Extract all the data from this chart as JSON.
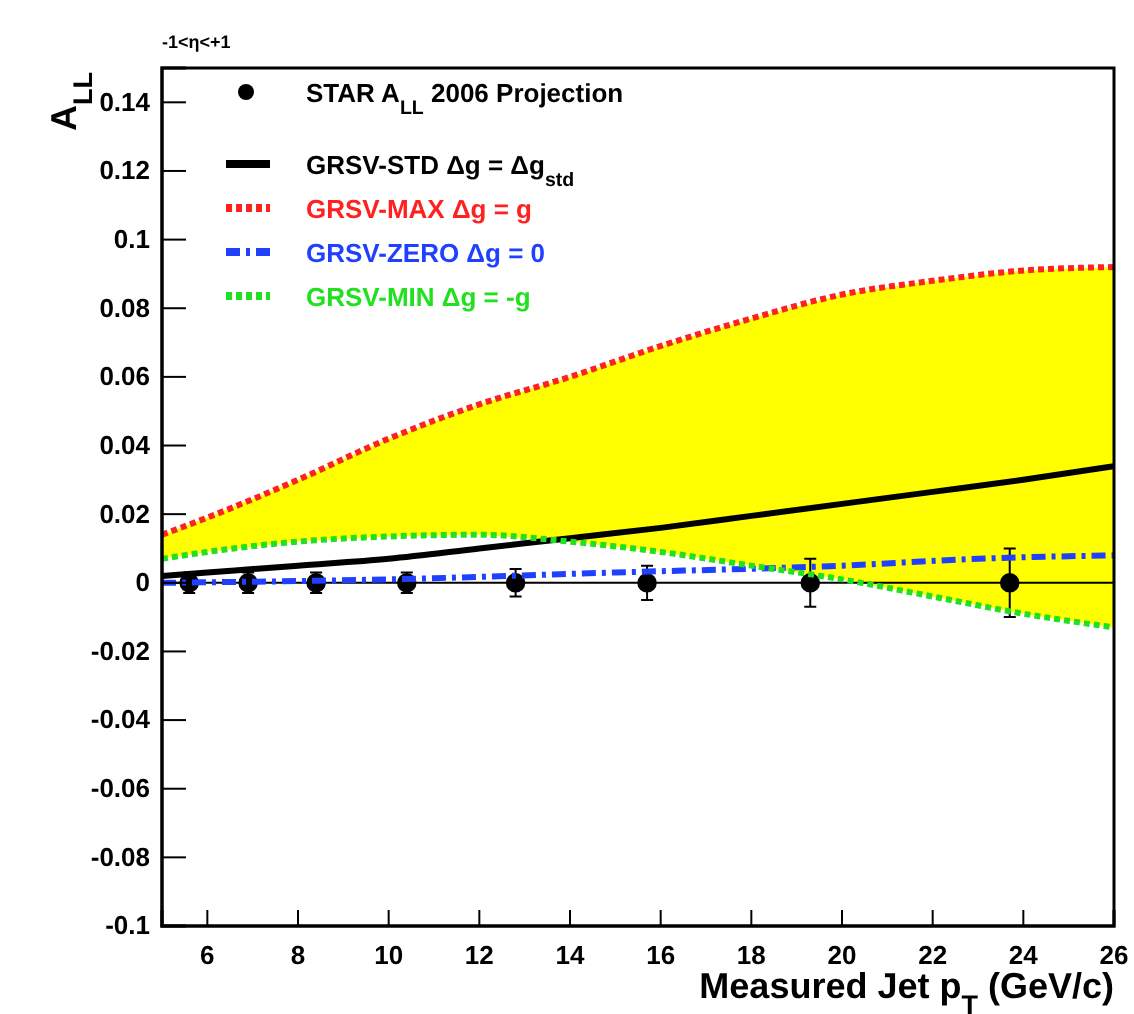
{
  "chart_data": {
    "type": "line",
    "xlabel": "Measured Jet p$_{T}$ (GeV/c)",
    "ylabel": "A$_{LL}$",
    "annotations": [
      "-1<η<+1"
    ],
    "xlim": [
      5,
      26
    ],
    "ylim": [
      -0.1,
      0.15
    ],
    "xticks": [
      6,
      8,
      10,
      12,
      14,
      16,
      18,
      20,
      22,
      24,
      26
    ],
    "yticks": [
      -0.1,
      -0.08,
      -0.06,
      -0.04,
      -0.02,
      0,
      0.02,
      0.04,
      0.06,
      0.08,
      0.1,
      0.12,
      0.14
    ],
    "legend": "top left",
    "ref_lines": [
      {
        "axis": "y",
        "value": 0,
        "color": "#000000"
      }
    ],
    "series": [
      {
        "name": "STAR A$_{LL}$ 2006 Projection",
        "type": "scatter",
        "marker": "circle",
        "color": "#000000",
        "x": [
          5.6,
          6.9,
          8.4,
          10.4,
          12.8,
          15.7,
          19.3,
          23.7
        ],
        "values": [
          0,
          0,
          0,
          0,
          0,
          0,
          0,
          0
        ],
        "errors": [
          0.003,
          0.003,
          0.003,
          0.003,
          0.004,
          0.005,
          0.007,
          0.01
        ]
      },
      {
        "name": "GRSV-STD Δg = Δg$_{std}$",
        "line_style": "solid",
        "color": "#000000",
        "x": [
          5,
          6,
          8,
          10,
          12,
          14,
          16,
          18,
          20,
          22,
          24,
          26
        ],
        "values": [
          0.002,
          0.003,
          0.005,
          0.007,
          0.01,
          0.013,
          0.016,
          0.0195,
          0.023,
          0.0265,
          0.03,
          0.034
        ],
        "lower": [
          0.007,
          0.009,
          0.012,
          0.0135,
          0.014,
          0.012,
          0.009,
          0.005,
          0.001,
          -0.004,
          -0.009,
          -0.013
        ],
        "upper": [
          0.014,
          0.019,
          0.03,
          0.042,
          0.052,
          0.06,
          0.069,
          0.077,
          0.084,
          0.088,
          0.091,
          0.092
        ]
      },
      {
        "name": "GRSV-MAX Δg = g",
        "line_style": "dotted",
        "color": "#ff2020",
        "x": [
          5,
          6,
          8,
          10,
          12,
          14,
          16,
          18,
          20,
          22,
          24,
          26
        ],
        "values": [
          0.014,
          0.019,
          0.03,
          0.042,
          0.052,
          0.06,
          0.069,
          0.077,
          0.084,
          0.088,
          0.091,
          0.092
        ]
      },
      {
        "name": "GRSV-ZERO Δg = 0",
        "line_style": "dashed",
        "color": "#2040ff",
        "x": [
          5,
          10,
          15,
          20,
          23,
          26
        ],
        "values": [
          0,
          0.001,
          0.003,
          0.005,
          0.007,
          0.008
        ]
      },
      {
        "name": "GRSV-MIN Δg = -g",
        "line_style": "dotted",
        "color": "#20e020",
        "x": [
          5,
          6,
          8,
          10,
          12,
          14,
          16,
          18,
          20,
          22,
          24,
          26
        ],
        "values": [
          0.007,
          0.009,
          0.012,
          0.0135,
          0.014,
          0.012,
          0.009,
          0.005,
          0.001,
          -0.004,
          -0.009,
          -0.013
        ]
      }
    ]
  }
}
